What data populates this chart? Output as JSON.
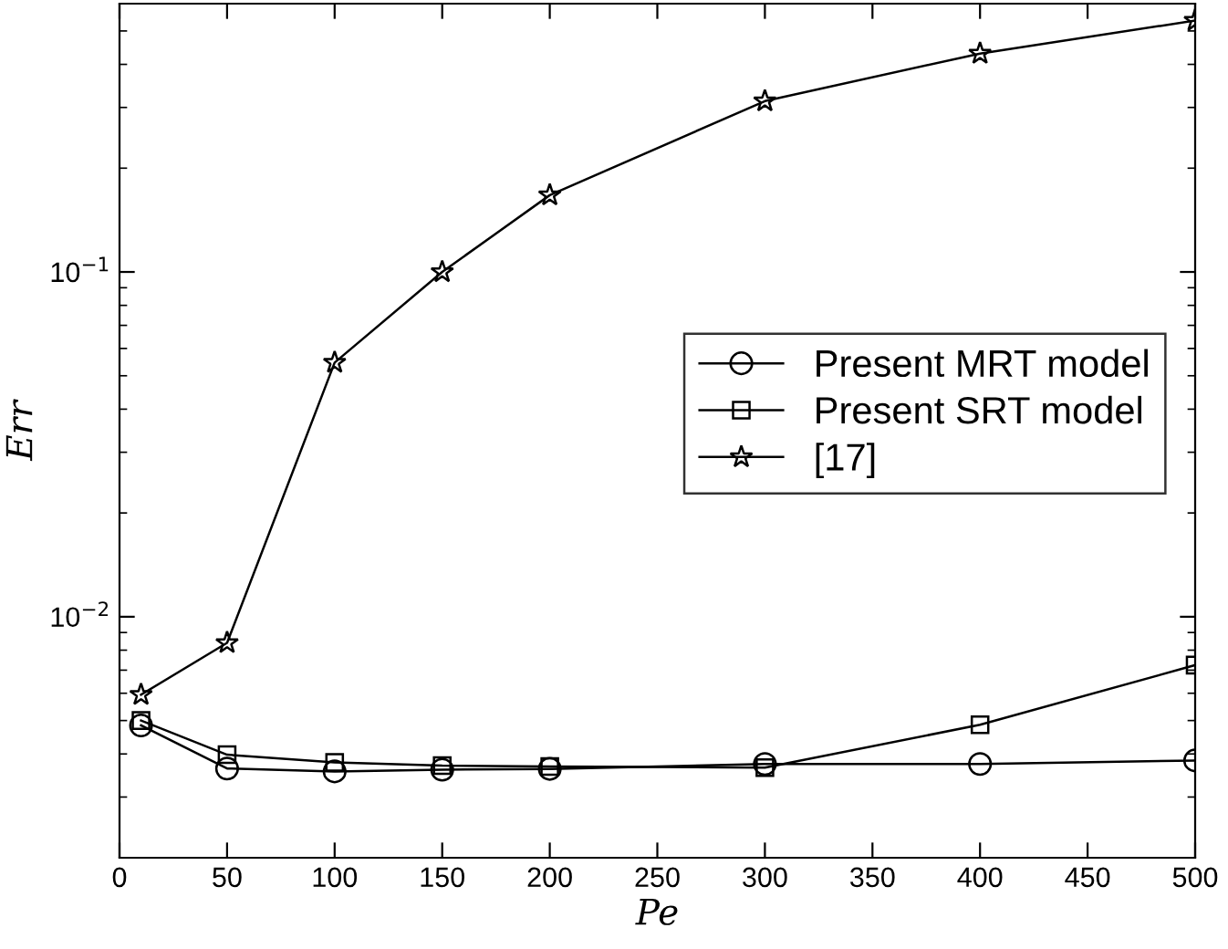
{
  "chart_data": {
    "type": "line",
    "xlabel": "Pe",
    "ylabel": "Err",
    "log": "y",
    "x": [
      10,
      50,
      100,
      150,
      200,
      300,
      400,
      500
    ],
    "xlim": [
      0,
      500
    ],
    "xticks": [
      0,
      50,
      100,
      150,
      200,
      250,
      300,
      350,
      400,
      450,
      500
    ],
    "ylim": [
      0.002,
      0.6
    ],
    "yticks": [
      {
        "value": 0.01,
        "label": "10$^{−2}$"
      },
      {
        "value": 0.1,
        "label": "10$^{−1}$"
      }
    ],
    "grid": false,
    "legend": "right",
    "line_style": "solid",
    "series": [
      {
        "name": "Present MRT model",
        "color": "#000000",
        "marker": "circle",
        "values": [
          0.00484,
          0.00363,
          0.00356,
          0.0036,
          0.00362,
          0.00374,
          0.00374,
          0.00383
        ]
      },
      {
        "name": "Present SRT model",
        "color": "#000000",
        "marker": "square",
        "values": [
          0.005,
          0.00398,
          0.00378,
          0.0037,
          0.00368,
          0.00365,
          0.00486,
          0.00724
        ]
      },
      {
        "name": "[17]",
        "color": "#000000",
        "marker": "star",
        "values": [
          0.00594,
          0.0084,
          0.0546,
          0.1,
          0.167,
          0.313,
          0.43,
          0.536
        ]
      }
    ]
  }
}
